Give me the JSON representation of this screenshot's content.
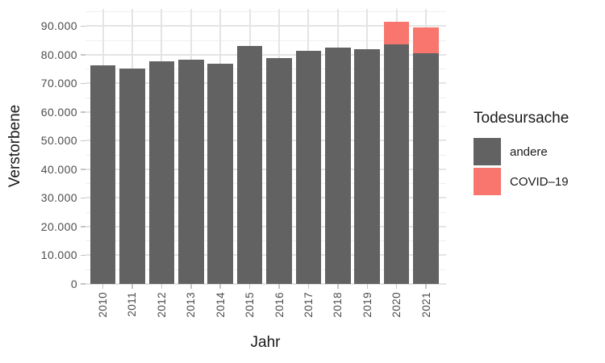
{
  "chart_data": {
    "type": "bar",
    "stacked": true,
    "title": "",
    "xlabel": "Jahr",
    "ylabel": "Verstorbene",
    "categories": [
      "2010",
      "2011",
      "2012",
      "2013",
      "2014",
      "2015",
      "2016",
      "2017",
      "2018",
      "2019",
      "2020",
      "2021"
    ],
    "series": [
      {
        "name": "andere",
        "color": "#626262",
        "values": [
          76300,
          75200,
          77800,
          78200,
          76900,
          83100,
          78700,
          81300,
          82600,
          81800,
          83700,
          80600
        ]
      },
      {
        "name": "COVID–19",
        "color": "#f8766d",
        "values": [
          0,
          0,
          0,
          0,
          0,
          0,
          0,
          0,
          0,
          0,
          7700,
          9000
        ]
      }
    ],
    "ylim": [
      0,
      96000
    ],
    "y_major_ticks": [
      0,
      10000,
      20000,
      30000,
      40000,
      50000,
      60000,
      70000,
      80000,
      90000
    ],
    "y_tick_labels": [
      "0",
      "10.000",
      "20.000",
      "30.000",
      "40.000",
      "50.000",
      "60.000",
      "70.000",
      "80.000",
      "90.000"
    ],
    "y_minor_step": 5000,
    "grid": "horizontal major+minor, vertical major at category centers",
    "legend_position": "right",
    "legend_title": "Todesursache",
    "legend_items": [
      {
        "label": "andere",
        "color": "#626262"
      },
      {
        "label": "COVID–19",
        "color": "#f8766d"
      }
    ]
  },
  "colors": {
    "background": "#ffffff",
    "bar_other": "#626262",
    "bar_covid": "#f8766d",
    "grid_major": "#e4e4e4",
    "grid_minor": "#efefef",
    "tick_text": "#4d4d4d",
    "title_text": "#1a1a1a"
  }
}
